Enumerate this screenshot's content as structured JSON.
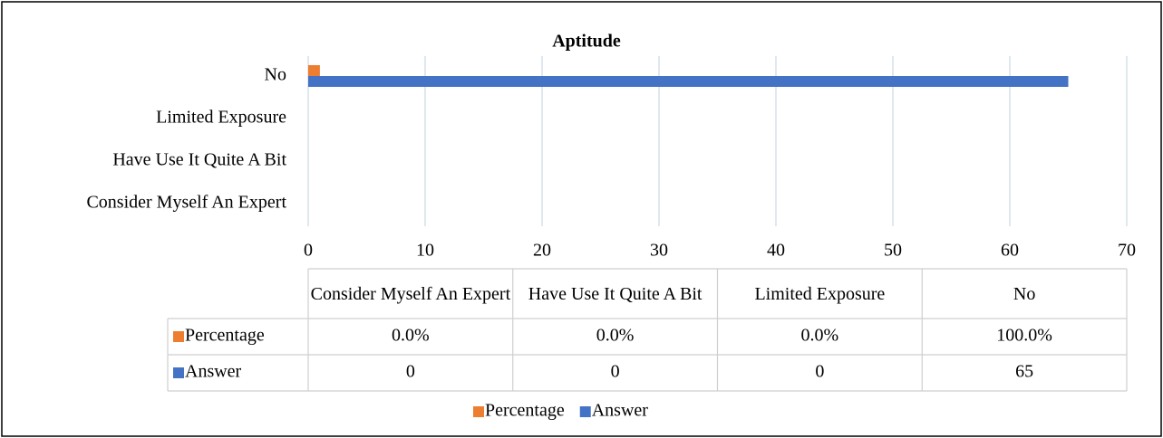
{
  "chart_data": {
    "type": "hbar",
    "title": "Aptitude",
    "categories": [
      "Consider Myself An Expert",
      "Have Use It Quite A Bit",
      "Limited Exposure",
      "No"
    ],
    "series": [
      {
        "name": "Percentage",
        "color": "#ed7d31",
        "values": [
          0,
          0,
          0,
          1
        ],
        "value_labels": [
          "0.0%",
          "0.0%",
          "0.0%",
          "100.0%"
        ]
      },
      {
        "name": "Answer",
        "color": "#4472c4",
        "values": [
          0,
          0,
          0,
          65
        ]
      }
    ],
    "xlim": [
      0,
      70
    ],
    "xticks": [
      0,
      10,
      20,
      30,
      40,
      50,
      60,
      70
    ],
    "grid": true,
    "legend": "bottom"
  }
}
